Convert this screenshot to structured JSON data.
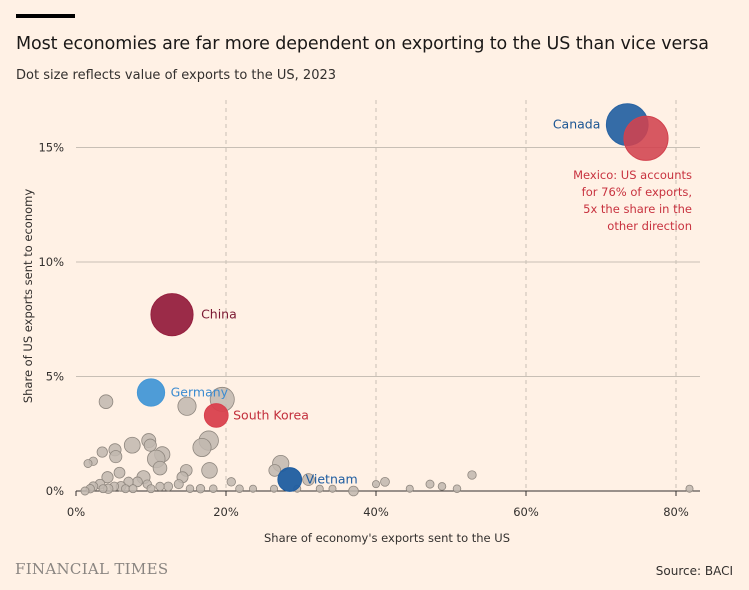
{
  "header": {
    "title": "Most economies are far more dependent on exporting to the US than vice versa",
    "subtitle": "Dot size reflects value of exports to the US, 2023"
  },
  "footer": {
    "brand": "FINANCIAL TIMES",
    "source": "Source: BACI"
  },
  "annotation": {
    "lines": [
      "Mexico: US accounts",
      "for 76% of exports,",
      "5x the share in the",
      "other direction"
    ]
  },
  "colors": {
    "background": "#FFF1E5",
    "grid": "#C8BFB5",
    "other": "#C1B7AF",
    "other_stroke": "#8F877F",
    "china": "#96203F",
    "mexico": "#D2424E",
    "canada": "#2A64A3",
    "germany": "#4497D6",
    "south_korea": "#D9404D",
    "vietnam": "#1F5DA0"
  },
  "chart_data": {
    "type": "scatter",
    "title": "Most economies are far more dependent on exporting to the US than vice versa",
    "subtitle": "Dot size reflects value of exports to the US, 2023",
    "xlabel": "Share of economy's exports sent to the US",
    "ylabel": "Share of US exports sent to economy",
    "xlim": [
      0,
      82
    ],
    "ylim": [
      0,
      17
    ],
    "x_ticks": [
      0,
      20,
      40,
      60,
      80
    ],
    "x_tick_labels": [
      "0%",
      "20%",
      "40%",
      "60%",
      "80%"
    ],
    "y_ticks": [
      0,
      5,
      10,
      15
    ],
    "y_tick_labels": [
      "0%",
      "5%",
      "10%",
      "15%"
    ],
    "size_encoding": "value of exports to the US, 2023 ($bn)",
    "highlighted": [
      {
        "name": "Canada",
        "label": "Canada",
        "x": 73.5,
        "y": 16.0,
        "size": 420,
        "color": "#2A64A3"
      },
      {
        "name": "Mexico",
        "label": "",
        "x": 76.0,
        "y": 15.4,
        "size": 475,
        "color": "#D2424E"
      },
      {
        "name": "China",
        "label": "China",
        "x": 12.8,
        "y": 7.7,
        "size": 430,
        "color": "#96203F"
      },
      {
        "name": "Germany",
        "label": "Germany",
        "x": 10.0,
        "y": 4.3,
        "size": 160,
        "color": "#4497D6"
      },
      {
        "name": "South Korea",
        "label": "South Korea",
        "x": 18.7,
        "y": 3.3,
        "size": 115,
        "color": "#D9404D"
      },
      {
        "name": "Vietnam",
        "label": "Vietnam",
        "x": 28.5,
        "y": 0.5,
        "size": 115,
        "color": "#1F5DA0"
      }
    ],
    "others": [
      {
        "x": 19.5,
        "y": 4.0,
        "size": 120
      },
      {
        "x": 14.8,
        "y": 3.7,
        "size": 60
      },
      {
        "x": 4.0,
        "y": 3.9,
        "size": 28
      },
      {
        "x": 17.7,
        "y": 2.2,
        "size": 70
      },
      {
        "x": 16.8,
        "y": 1.9,
        "size": 60
      },
      {
        "x": 7.5,
        "y": 2.0,
        "size": 42
      },
      {
        "x": 9.7,
        "y": 2.2,
        "size": 30
      },
      {
        "x": 9.9,
        "y": 2.0,
        "size": 20
      },
      {
        "x": 11.5,
        "y": 1.6,
        "size": 38
      },
      {
        "x": 10.7,
        "y": 1.4,
        "size": 55
      },
      {
        "x": 11.2,
        "y": 1.0,
        "size": 28
      },
      {
        "x": 5.2,
        "y": 1.8,
        "size": 20
      },
      {
        "x": 3.5,
        "y": 1.7,
        "size": 12
      },
      {
        "x": 5.3,
        "y": 1.5,
        "size": 20
      },
      {
        "x": 17.8,
        "y": 0.9,
        "size": 40
      },
      {
        "x": 27.3,
        "y": 1.2,
        "size": 45
      },
      {
        "x": 26.5,
        "y": 0.9,
        "size": 18
      },
      {
        "x": 31.0,
        "y": 0.5,
        "size": 18
      },
      {
        "x": 14.7,
        "y": 0.9,
        "size": 18
      },
      {
        "x": 14.2,
        "y": 0.6,
        "size": 15
      },
      {
        "x": 9.0,
        "y": 0.6,
        "size": 25
      },
      {
        "x": 5.8,
        "y": 0.8,
        "size": 14
      },
      {
        "x": 4.2,
        "y": 0.6,
        "size": 16
      },
      {
        "x": 2.3,
        "y": 1.3,
        "size": 6
      },
      {
        "x": 1.6,
        "y": 1.2,
        "size": 5
      },
      {
        "x": 52.8,
        "y": 0.7,
        "size": 6
      },
      {
        "x": 41.2,
        "y": 0.4,
        "size": 7
      },
      {
        "x": 47.2,
        "y": 0.3,
        "size": 5
      },
      {
        "x": 48.8,
        "y": 0.2,
        "size": 4
      },
      {
        "x": 50.8,
        "y": 0.1,
        "size": 4
      },
      {
        "x": 37.0,
        "y": 0.0,
        "size": 10
      },
      {
        "x": 40.0,
        "y": 0.3,
        "size": 3
      },
      {
        "x": 34.2,
        "y": 0.1,
        "size": 3
      },
      {
        "x": 32.5,
        "y": 0.1,
        "size": 3
      },
      {
        "x": 20.7,
        "y": 0.4,
        "size": 6
      },
      {
        "x": 21.8,
        "y": 0.1,
        "size": 4
      },
      {
        "x": 16.6,
        "y": 0.1,
        "size": 6
      },
      {
        "x": 13.7,
        "y": 0.3,
        "size": 8
      },
      {
        "x": 12.3,
        "y": 0.2,
        "size": 7
      },
      {
        "x": 11.2,
        "y": 0.2,
        "size": 6
      },
      {
        "x": 8.2,
        "y": 0.4,
        "size": 10
      },
      {
        "x": 7.0,
        "y": 0.4,
        "size": 9
      },
      {
        "x": 6.0,
        "y": 0.2,
        "size": 10
      },
      {
        "x": 5.1,
        "y": 0.2,
        "size": 7
      },
      {
        "x": 4.3,
        "y": 0.1,
        "size": 9
      },
      {
        "x": 3.2,
        "y": 0.3,
        "size": 10
      },
      {
        "x": 2.3,
        "y": 0.2,
        "size": 8
      },
      {
        "x": 1.9,
        "y": 0.1,
        "size": 6
      },
      {
        "x": 1.2,
        "y": 0.0,
        "size": 5
      },
      {
        "x": 3.6,
        "y": 0.1,
        "size": 5
      },
      {
        "x": 6.6,
        "y": 0.1,
        "size": 5
      },
      {
        "x": 7.6,
        "y": 0.1,
        "size": 5
      },
      {
        "x": 9.5,
        "y": 0.3,
        "size": 6
      },
      {
        "x": 10.0,
        "y": 0.1,
        "size": 5
      },
      {
        "x": 15.2,
        "y": 0.1,
        "size": 4
      },
      {
        "x": 18.3,
        "y": 0.1,
        "size": 4
      },
      {
        "x": 23.6,
        "y": 0.1,
        "size": 3
      },
      {
        "x": 26.4,
        "y": 0.1,
        "size": 3
      },
      {
        "x": 29.5,
        "y": 0.1,
        "size": 3
      },
      {
        "x": 44.5,
        "y": 0.1,
        "size": 3
      },
      {
        "x": 81.8,
        "y": 0.1,
        "size": 3
      }
    ]
  }
}
